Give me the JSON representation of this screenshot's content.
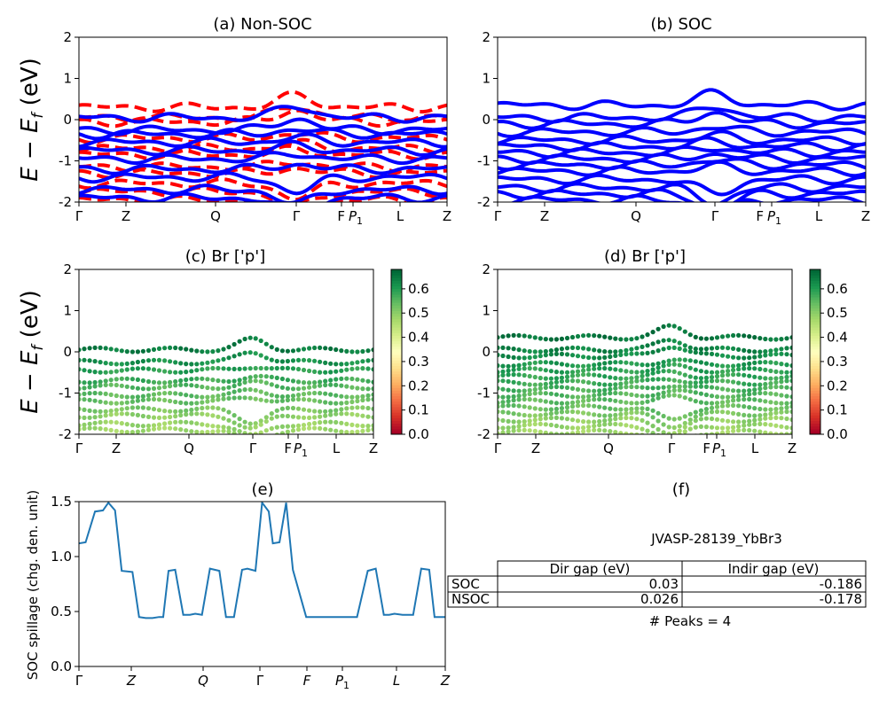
{
  "figure": {
    "ylabel_energy": "E − E_f (eV)",
    "info_title": "JVASP-28139_YbBr3",
    "peaks_text": "# Peaks = 4"
  },
  "colors": {
    "nonsoc": "#ff0000",
    "soc": "#0000ff",
    "spillage": "#1f77b4",
    "cmap": "RdYlGn"
  },
  "table": {
    "headers": [
      "",
      "Dir gap (eV)",
      "Indir gap (eV)"
    ],
    "rows": [
      {
        "label": "SOC",
        "dir": "0.03",
        "indir": "-0.186"
      },
      {
        "label": "NSOC",
        "dir": "0.026",
        "indir": "-0.178"
      }
    ]
  },
  "chart_data": [
    {
      "type": "line",
      "title": "(a) Non-SOC",
      "ylabel": "E − E_f (eV)",
      "ylim": [
        -2,
        2
      ],
      "yticks": [
        -2,
        -1,
        0,
        1,
        2
      ],
      "xticks": [
        "Γ",
        "Z",
        "Q",
        "Γ",
        "F",
        "P1",
        "L",
        "Z"
      ],
      "xtick_pos": [
        0,
        1,
        3,
        5,
        6,
        6.4,
        7.3,
        8.1
      ],
      "series": [
        {
          "name": "Non-SOC",
          "style": "dashed",
          "color": "#ff0000",
          "levels": [
            0.3,
            0.05,
            -0.05,
            -0.45,
            -0.7,
            -0.85,
            -1.15,
            -1.3,
            -1.55,
            -1.75,
            -1.95
          ]
        },
        {
          "name": "SOC",
          "style": "solid",
          "color": "#0000ff",
          "levels": [
            0.05,
            -0.25,
            -0.35,
            -0.55,
            -0.75,
            -0.95,
            -1.2,
            -1.4,
            -1.7,
            -1.9
          ]
        }
      ]
    },
    {
      "type": "line",
      "title": "(b) SOC",
      "ylim": [
        -2,
        2
      ],
      "yticks": [
        -2,
        -1,
        0,
        1,
        2
      ],
      "xticks": [
        "Γ",
        "Z",
        "Q",
        "Γ",
        "F",
        "P1",
        "L",
        "Z"
      ],
      "series": [
        {
          "name": "SOC",
          "color": "#0000ff",
          "levels": [
            0.35,
            0.05,
            -0.1,
            -0.3,
            -0.5,
            -0.65,
            -0.8,
            -0.95,
            -1.1,
            -1.25,
            -1.45,
            -1.65,
            -1.8,
            -1.95
          ]
        }
      ]
    },
    {
      "type": "scatter",
      "title": "(c)  Br ['p']",
      "ylabel": "E − E_f (eV)",
      "ylim": [
        -2,
        2
      ],
      "yticks": [
        -2,
        -1,
        0,
        1,
        2
      ],
      "xticks": [
        "Γ",
        "Z",
        "Q",
        "Γ",
        "F",
        "P1",
        "L",
        "Z"
      ],
      "colorbar": {
        "min": 0.0,
        "max": 0.68,
        "ticks": [
          "0.0",
          "0.1",
          "0.2",
          "0.3",
          "0.4",
          "0.5",
          "0.6"
        ]
      },
      "series": [
        {
          "name": "Br p weight",
          "levels": [
            0.05,
            -0.25,
            -0.45,
            -0.7,
            -0.85,
            -1.05,
            -1.2,
            -1.4,
            -1.55,
            -1.75,
            -1.9
          ],
          "weights": [
            0.65,
            0.62,
            0.6,
            0.58,
            0.56,
            0.55,
            0.54,
            0.52,
            0.5,
            0.49,
            0.48
          ]
        }
      ]
    },
    {
      "type": "scatter",
      "title": "(d) Br ['p']",
      "ylim": [
        -2,
        2
      ],
      "yticks": [
        -2,
        -1,
        0,
        1,
        2
      ],
      "xticks": [
        "Γ",
        "Z",
        "Q",
        "Γ",
        "F",
        "P1",
        "L",
        "Z"
      ],
      "colorbar": {
        "min": 0.0,
        "max": 0.68,
        "ticks": [
          "0.0",
          "0.1",
          "0.2",
          "0.3",
          "0.4",
          "0.5",
          "0.6"
        ]
      },
      "series": [
        {
          "name": "Br p weight",
          "levels": [
            0.35,
            0.05,
            -0.1,
            -0.3,
            -0.45,
            -0.6,
            -0.75,
            -0.9,
            -1.05,
            -1.2,
            -1.35,
            -1.5,
            -1.65,
            -1.8,
            -1.95
          ],
          "weights": [
            0.66,
            0.64,
            0.63,
            0.61,
            0.6,
            0.59,
            0.58,
            0.57,
            0.56,
            0.55,
            0.54,
            0.52,
            0.5,
            0.49,
            0.48
          ]
        }
      ]
    },
    {
      "type": "line",
      "title": "(e)",
      "ylabel": "SOC spillage (chg. den. unit)",
      "ylim": [
        0,
        1.5
      ],
      "yticks": [
        "0.0",
        "0.5",
        "1.0",
        "1.5"
      ],
      "xticks": [
        "Γ",
        "Z",
        "Q",
        "Γ",
        "F",
        "P1",
        "L",
        "Z"
      ],
      "x": [
        0,
        0.05,
        0.12,
        0.18,
        0.22,
        0.27,
        0.32,
        0.4,
        0.45,
        0.5,
        0.55,
        0.6,
        0.63,
        0.67,
        0.72,
        0.78,
        0.83,
        0.87,
        0.92,
        0.98,
        1.05,
        1.1,
        1.16,
        1.22,
        1.26,
        1.32,
        1.37,
        1.42,
        1.45,
        1.5,
        1.55,
        1.6,
        1.7,
        1.82,
        1.9,
        1.95,
        2.0,
        2.08,
        2.16,
        2.22,
        2.28,
        2.32,
        2.36,
        2.42,
        2.5,
        2.56,
        2.62,
        2.66,
        2.7,
        2.74
      ],
      "values": [
        1.12,
        1.13,
        1.41,
        1.42,
        1.49,
        1.42,
        0.87,
        0.86,
        0.45,
        0.44,
        0.44,
        0.45,
        0.45,
        0.87,
        0.88,
        0.47,
        0.47,
        0.48,
        0.47,
        0.89,
        0.87,
        0.45,
        0.45,
        0.88,
        0.89,
        0.87,
        1.49,
        1.41,
        1.12,
        1.13,
        1.49,
        0.88,
        0.45,
        0.45,
        0.45,
        0.45,
        0.45,
        0.45,
        0.87,
        0.89,
        0.47,
        0.47,
        0.48,
        0.47,
        0.47,
        0.89,
        0.88,
        0.45,
        0.45,
        0.45
      ]
    }
  ]
}
